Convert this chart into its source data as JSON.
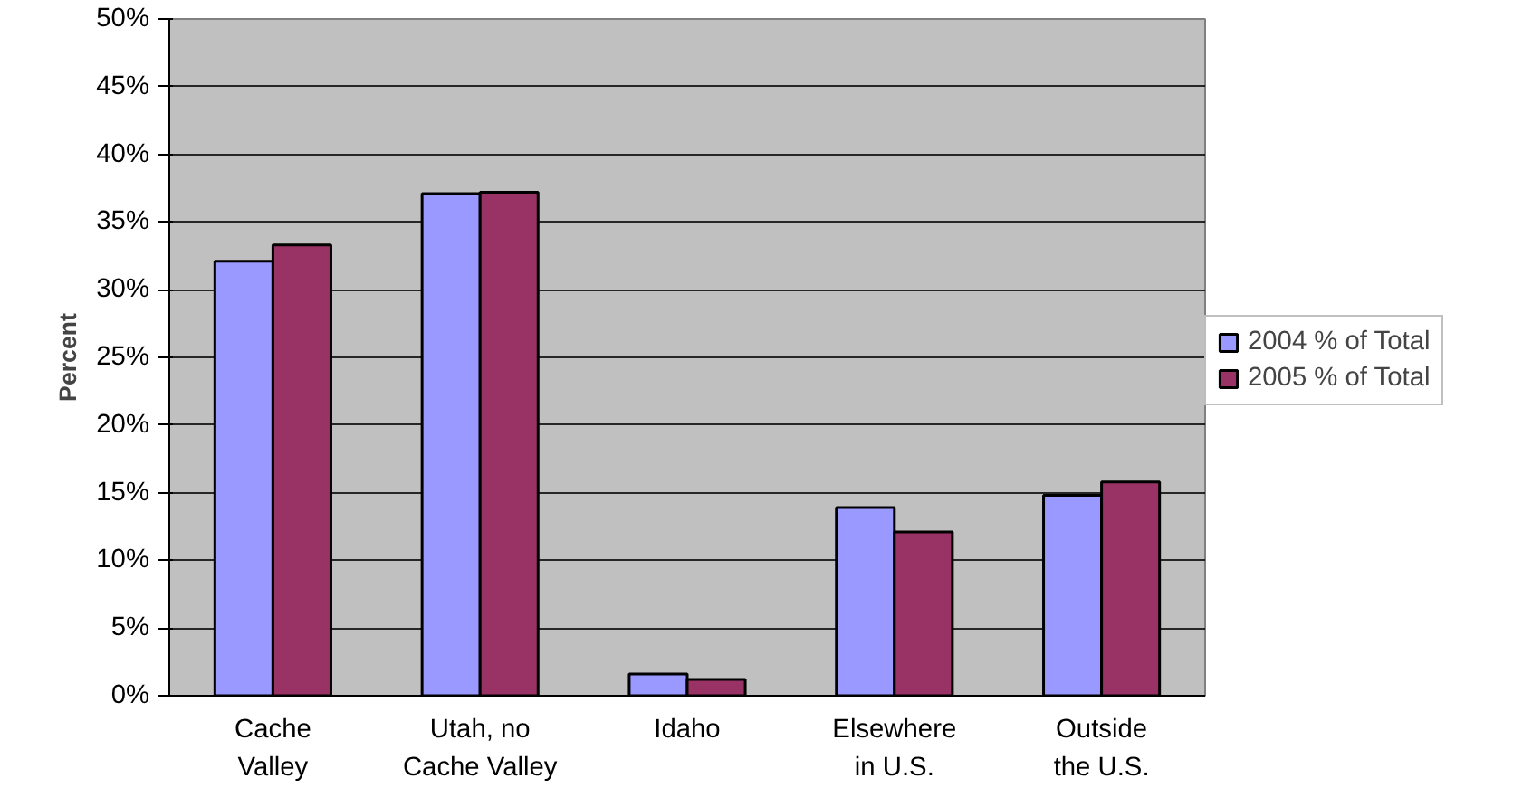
{
  "chart_data": {
    "type": "bar",
    "ylabel": "Percent",
    "categories": [
      "Cache\nValley",
      "Utah, no\nCache Valley",
      "Idaho",
      "Elsewhere\nin U.S.",
      "Outside\nthe U.S."
    ],
    "series": [
      {
        "name": "2004 % of Total",
        "color": "#9999ff",
        "values": [
          32.1,
          37.1,
          1.6,
          13.9,
          14.8
        ]
      },
      {
        "name": "2005 % of Total",
        "color": "#993366",
        "values": [
          33.3,
          37.2,
          1.2,
          12.1,
          15.8
        ]
      }
    ],
    "ylim": [
      0,
      50
    ],
    "yticks": [
      {
        "value": 0,
        "label": "0%"
      },
      {
        "value": 5,
        "label": "5%"
      },
      {
        "value": 10,
        "label": "10%"
      },
      {
        "value": 15,
        "label": "15%"
      },
      {
        "value": 20,
        "label": "20%"
      },
      {
        "value": 25,
        "label": "25%"
      },
      {
        "value": 30,
        "label": "30%"
      },
      {
        "value": 35,
        "label": "35%"
      },
      {
        "value": 40,
        "label": "40%"
      },
      {
        "value": 45,
        "label": "45%"
      },
      {
        "value": 50,
        "label": "50%"
      }
    ],
    "grid": "y",
    "legend": "right"
  }
}
